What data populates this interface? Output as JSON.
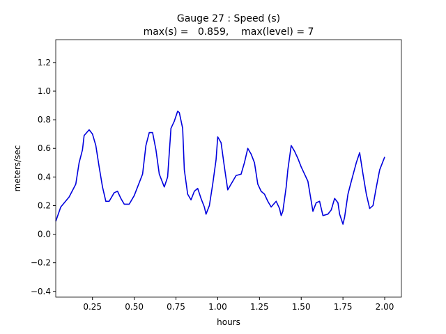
{
  "chart_data": {
    "type": "line",
    "title": "Gauge 27 : Speed (s)",
    "subtitle": "max(s) =   0.859,    max(level) = 7",
    "x_label": "hours",
    "y_label": "meters/sec",
    "color": "#0000dd",
    "xlim": [
      0.03,
      2.1
    ],
    "ylim": [
      -0.44,
      1.36
    ],
    "xticks": [
      0.25,
      {
        "value": 0.5,
        "label": "0.50"
      },
      0.75,
      {
        "value": 1.0,
        "label": "1.00"
      },
      1.25,
      {
        "value": 1.5,
        "label": "1.50"
      },
      1.75,
      {
        "value": 2.0,
        "label": "2.00"
      }
    ],
    "yticks": [
      {
        "value": -0.4,
        "label": "−0.4"
      },
      {
        "value": -0.2,
        "label": "−0.2"
      },
      {
        "value": 0.0,
        "label": "0.0"
      },
      0.2,
      0.4,
      0.6,
      0.8,
      {
        "value": 1.0,
        "label": "1.0"
      },
      1.2
    ],
    "x": [
      0.03,
      0.06,
      0.11,
      0.15,
      0.17,
      0.19,
      0.2,
      0.23,
      0.25,
      0.27,
      0.29,
      0.31,
      0.33,
      0.35,
      0.38,
      0.4,
      0.42,
      0.44,
      0.47,
      0.5,
      0.52,
      0.55,
      0.57,
      0.59,
      0.61,
      0.63,
      0.65,
      0.68,
      0.7,
      0.72,
      0.74,
      0.76,
      0.77,
      0.79,
      0.8,
      0.82,
      0.84,
      0.86,
      0.88,
      0.9,
      0.92,
      0.93,
      0.95,
      0.97,
      0.99,
      1.0,
      1.02,
      1.04,
      1.06,
      1.09,
      1.11,
      1.14,
      1.16,
      1.18,
      1.2,
      1.22,
      1.24,
      1.26,
      1.28,
      1.3,
      1.32,
      1.35,
      1.37,
      1.38,
      1.39,
      1.41,
      1.42,
      1.44,
      1.46,
      1.48,
      1.5,
      1.52,
      1.54,
      1.56,
      1.57,
      1.59,
      1.61,
      1.63,
      1.66,
      1.68,
      1.7,
      1.72,
      1.73,
      1.75,
      1.76,
      1.78,
      1.8,
      1.83,
      1.85,
      1.87,
      1.89,
      1.91,
      1.93,
      1.95,
      1.97,
      2.0
    ],
    "y": [
      0.09,
      0.19,
      0.26,
      0.35,
      0.5,
      0.59,
      0.69,
      0.73,
      0.7,
      0.62,
      0.47,
      0.33,
      0.23,
      0.23,
      0.29,
      0.3,
      0.25,
      0.21,
      0.21,
      0.27,
      0.33,
      0.42,
      0.62,
      0.71,
      0.71,
      0.59,
      0.42,
      0.33,
      0.4,
      0.74,
      0.79,
      0.86,
      0.85,
      0.74,
      0.45,
      0.28,
      0.24,
      0.3,
      0.32,
      0.25,
      0.19,
      0.14,
      0.2,
      0.35,
      0.52,
      0.68,
      0.64,
      0.47,
      0.31,
      0.37,
      0.41,
      0.42,
      0.5,
      0.6,
      0.56,
      0.5,
      0.35,
      0.3,
      0.28,
      0.23,
      0.19,
      0.23,
      0.18,
      0.13,
      0.16,
      0.33,
      0.45,
      0.62,
      0.58,
      0.53,
      0.47,
      0.42,
      0.37,
      0.23,
      0.16,
      0.22,
      0.23,
      0.13,
      0.14,
      0.17,
      0.25,
      0.22,
      0.14,
      0.07,
      0.12,
      0.28,
      0.37,
      0.5,
      0.57,
      0.42,
      0.28,
      0.18,
      0.2,
      0.33,
      0.45,
      0.54
    ]
  }
}
